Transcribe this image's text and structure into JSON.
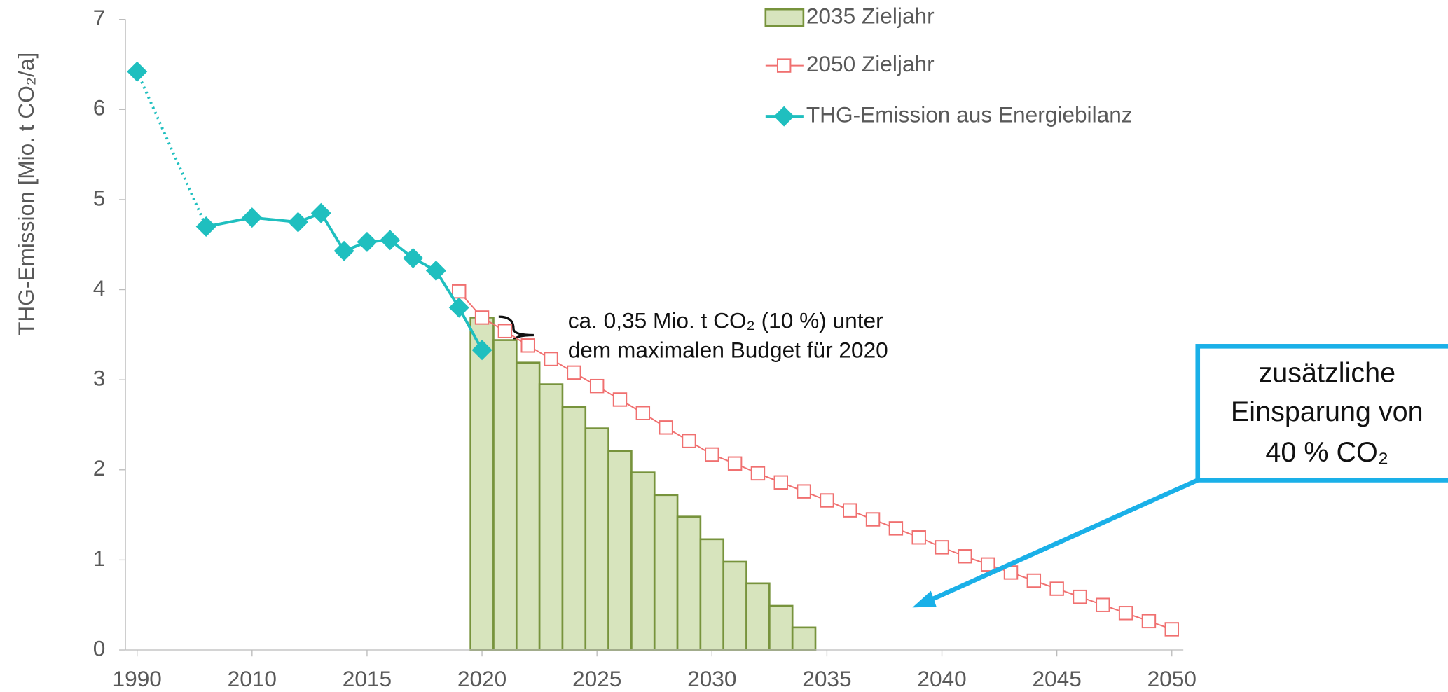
{
  "chart_data": {
    "type": "bar_line",
    "y_axis_label": "THG-Emission [Mio. t CO₂/a]",
    "categories": [
      "1990",
      null,
      null,
      null,
      null,
      "2010",
      null,
      null,
      null,
      null,
      "2015",
      null,
      null,
      null,
      null,
      "2020",
      null,
      null,
      null,
      null,
      "2025",
      null,
      null,
      null,
      null,
      "2030",
      null,
      null,
      null,
      null,
      "2035",
      null,
      null,
      null,
      null,
      "2040",
      null,
      null,
      null,
      null,
      "2045",
      null,
      null,
      null,
      null,
      "2050"
    ],
    "ylim": [
      0,
      7
    ],
    "yticks": [
      0,
      1,
      2,
      3,
      4,
      5,
      6,
      7
    ],
    "series": [
      {
        "name": "2035 Zieljahr",
        "type": "bar",
        "color": "#d7e4bd",
        "edge_color": "#77933c",
        "values": [
          null,
          null,
          null,
          null,
          null,
          null,
          null,
          null,
          null,
          null,
          null,
          null,
          null,
          null,
          null,
          3.69,
          3.44,
          3.19,
          2.95,
          2.7,
          2.46,
          2.21,
          1.97,
          1.72,
          1.48,
          1.23,
          0.98,
          0.74,
          0.49,
          0.25,
          null,
          null,
          null,
          null,
          null,
          null,
          null,
          null,
          null,
          null,
          null,
          null,
          null,
          null,
          null,
          null
        ]
      },
      {
        "name": "2050 Zieljahr",
        "type": "line",
        "marker": "square",
        "color": "#f07070",
        "values": [
          null,
          null,
          null,
          null,
          null,
          null,
          null,
          null,
          null,
          null,
          null,
          null,
          null,
          null,
          3.98,
          3.69,
          3.54,
          3.38,
          3.23,
          3.08,
          2.93,
          2.78,
          2.63,
          2.47,
          2.32,
          2.17,
          2.07,
          1.96,
          1.86,
          1.76,
          1.66,
          1.55,
          1.45,
          1.35,
          1.25,
          1.14,
          1.04,
          0.95,
          0.86,
          0.77,
          0.68,
          0.59,
          0.5,
          0.41,
          0.32,
          0.23
        ]
      },
      {
        "name": "THG-Emission aus Energiebilanz",
        "type": "line",
        "marker": "diamond",
        "color": "#1fbfbf",
        "connect_gaps": true,
        "first_segment_dash": "dotted",
        "values": [
          6.42,
          null,
          null,
          4.7,
          null,
          4.8,
          null,
          4.75,
          4.85,
          4.43,
          4.53,
          4.55,
          4.35,
          4.21,
          3.8,
          3.33,
          null,
          null,
          null,
          null,
          null,
          null,
          null,
          null,
          null,
          null,
          null,
          null,
          null,
          null,
          null,
          null,
          null,
          null,
          null,
          null,
          null,
          null,
          null,
          null,
          null,
          null,
          null,
          null,
          null,
          null
        ]
      }
    ],
    "annotation": [
      "ca. 0,35 Mio. t CO₂ (10 %) unter",
      "dem maximalen Budget für 2020"
    ],
    "callout": [
      "zusätzliche",
      "Einsparung von",
      "40 % CO₂"
    ],
    "callout_color": "#1ab0e8"
  }
}
